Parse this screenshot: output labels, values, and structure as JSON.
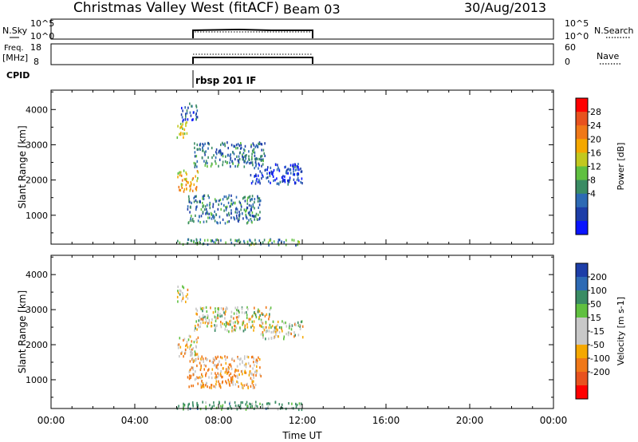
{
  "header": {
    "title": "Christmas Valley West (fitACF)",
    "beam": "Beam 03",
    "date": "30/Aug/2013"
  },
  "nsky_panel": {
    "label": "N.Sky",
    "ticks_left": [
      "10^5",
      "10^0"
    ],
    "ticks_right": [
      "10^5",
      "10^0"
    ],
    "right_label": "N.Search"
  },
  "freq_panel": {
    "label_line1": "Freq.",
    "label_line2": "[MHz]",
    "ticks_left": [
      "18",
      "8"
    ],
    "ticks_right": [
      "60",
      "0"
    ],
    "right_label": "Nave"
  },
  "cpid": {
    "label": "CPID",
    "annotation": "rbsp 201 IF"
  },
  "chart_data": [
    {
      "type": "heatmap",
      "name": "power",
      "ylabel": "Slant Range [km]",
      "yticks": [
        1000,
        2000,
        3000,
        4000
      ],
      "ylim": [
        180,
        4550
      ],
      "xlim": [
        0,
        24
      ],
      "colorbar_label": "Power [dB]",
      "colorbar_ticks": [
        "28",
        "24",
        "20",
        "16",
        "12",
        "8",
        "4"
      ],
      "colors": [
        "#ff0000",
        "#e8521e",
        "#f07818",
        "#f5a800",
        "#c2c81e",
        "#60c040",
        "#3a8c64",
        "#2d6ab4",
        "#1d3ea8",
        "#0a14ff"
      ],
      "regions": [
        {
          "t": [
            6.0,
            6.5
          ],
          "r": [
            3200,
            3700
          ],
          "level": 18
        },
        {
          "t": [
            6.2,
            7.0
          ],
          "r": [
            3700,
            4200
          ],
          "level": 8
        },
        {
          "t": [
            6.0,
            7.0
          ],
          "r": [
            1700,
            2300
          ],
          "level": 20
        },
        {
          "t": [
            6.8,
            10.2
          ],
          "r": [
            2400,
            3100
          ],
          "level": 10
        },
        {
          "t": [
            6.5,
            10.0
          ],
          "r": [
            800,
            1600
          ],
          "level": 10
        },
        {
          "t": [
            9.5,
            12.0
          ],
          "r": [
            1900,
            2500
          ],
          "level": 6
        },
        {
          "t": [
            6.0,
            12.0
          ],
          "r": [
            180,
            350
          ],
          "level": 12
        }
      ]
    },
    {
      "type": "heatmap",
      "name": "velocity",
      "ylabel": "Slant Range [km]",
      "yticks": [
        1000,
        2000,
        3000,
        4000
      ],
      "ylim": [
        180,
        4550
      ],
      "xlim": [
        0,
        24
      ],
      "colorbar_label": "Velocity [m s-1]",
      "colorbar_ticks": [
        "200",
        "100",
        "50",
        "15",
        "-15",
        "-50",
        "-100",
        "-200"
      ],
      "colors": [
        "#1d3ea8",
        "#2d6ab4",
        "#3a8c64",
        "#60c040",
        "#c8c8c8",
        "#c8c8c8",
        "#f5a800",
        "#f07818",
        "#e8521e",
        "#ff0000"
      ],
      "regions": [
        {
          "t": [
            6.0,
            6.5
          ],
          "r": [
            3200,
            3700
          ],
          "level": 0
        },
        {
          "t": [
            6.0,
            7.0
          ],
          "r": [
            1700,
            2300
          ],
          "level": -20
        },
        {
          "t": [
            6.8,
            10.5
          ],
          "r": [
            2400,
            3100
          ],
          "level": 0
        },
        {
          "t": [
            6.5,
            10.0
          ],
          "r": [
            800,
            1700
          ],
          "level": -30
        },
        {
          "t": [
            10.0,
            12.0
          ],
          "r": [
            2200,
            2700
          ],
          "level": 0
        },
        {
          "t": [
            6.0,
            12.0
          ],
          "r": [
            180,
            400
          ],
          "level": 40
        }
      ]
    }
  ],
  "x_axis": {
    "ticks": [
      "00:00",
      "04:00",
      "08:00",
      "12:00",
      "16:00",
      "20:00",
      "00:00"
    ],
    "label": "Time UT"
  }
}
